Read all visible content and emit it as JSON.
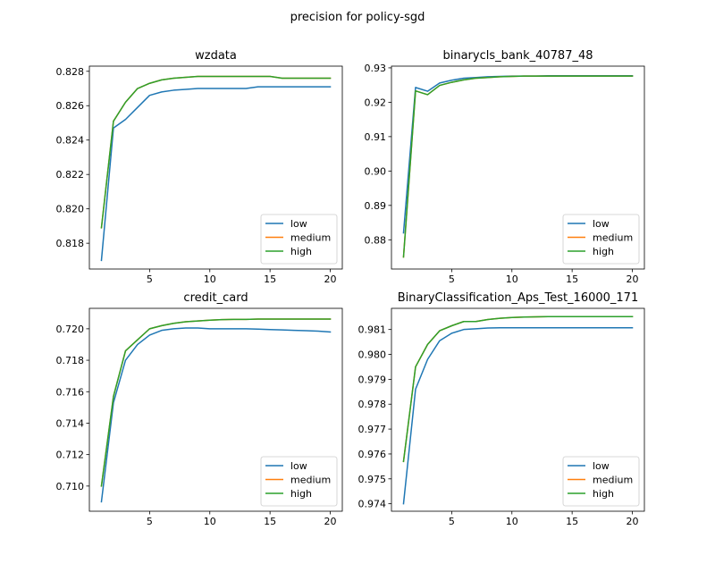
{
  "suptitle": "precision for policy-sgd",
  "colors": {
    "low": "#1f77b4",
    "medium": "#ff7f0e",
    "high": "#2ca02c"
  },
  "chart_data": [
    {
      "type": "line",
      "title": "wzdata",
      "xlim": [
        0,
        21
      ],
      "ylim": [
        0.8165,
        0.8283
      ],
      "xticks": [
        5,
        10,
        15,
        20
      ],
      "yticks": [
        0.818,
        0.82,
        0.822,
        0.824,
        0.826,
        0.828
      ],
      "ytick_labels": [
        "0.818",
        "0.820",
        "0.822",
        "0.824",
        "0.826",
        "0.828"
      ],
      "legend": "lower-right",
      "x": [
        1,
        2,
        3,
        4,
        5,
        6,
        7,
        8,
        9,
        10,
        11,
        12,
        13,
        14,
        15,
        16,
        17,
        18,
        19,
        20
      ],
      "series": [
        {
          "name": "low",
          "values": [
            0.817,
            0.8247,
            0.8252,
            0.8259,
            0.8266,
            0.8268,
            0.8269,
            0.82695,
            0.827,
            0.827,
            0.827,
            0.827,
            0.827,
            0.8271,
            0.8271,
            0.8271,
            0.8271,
            0.8271,
            0.8271,
            0.8271
          ]
        },
        {
          "name": "medium",
          "values": [
            0.8189,
            0.8251,
            0.8262,
            0.827,
            0.8273,
            0.8275,
            0.8276,
            0.82765,
            0.8277,
            0.8277,
            0.8277,
            0.8277,
            0.8277,
            0.8277,
            0.8277,
            0.8276,
            0.8276,
            0.8276,
            0.8276,
            0.8276
          ]
        },
        {
          "name": "high",
          "values": [
            0.8189,
            0.8251,
            0.8262,
            0.827,
            0.8273,
            0.8275,
            0.8276,
            0.82765,
            0.8277,
            0.8277,
            0.8277,
            0.8277,
            0.8277,
            0.8277,
            0.8277,
            0.8276,
            0.8276,
            0.8276,
            0.8276,
            0.8276
          ]
        }
      ]
    },
    {
      "type": "line",
      "title": "binarycls_bank_40787_48",
      "xlim": [
        0,
        21
      ],
      "ylim": [
        0.8715,
        0.9305
      ],
      "xticks": [
        5,
        10,
        15,
        20
      ],
      "yticks": [
        0.88,
        0.89,
        0.9,
        0.91,
        0.92,
        0.93
      ],
      "ytick_labels": [
        "0.88",
        "0.89",
        "0.90",
        "0.91",
        "0.92",
        "0.93"
      ],
      "legend": "lower-right",
      "x": [
        1,
        2,
        3,
        4,
        5,
        6,
        7,
        8,
        9,
        10,
        11,
        12,
        13,
        14,
        15,
        16,
        17,
        18,
        19,
        20
      ],
      "series": [
        {
          "name": "low",
          "values": [
            0.882,
            0.9243,
            0.9232,
            0.9256,
            0.9264,
            0.927,
            0.9272,
            0.9274,
            0.9275,
            0.9276,
            0.9276,
            0.9276,
            0.9277,
            0.9277,
            0.9277,
            0.9277,
            0.9277,
            0.9277,
            0.9277,
            0.9277
          ]
        },
        {
          "name": "medium",
          "values": [
            0.875,
            0.9233,
            0.9222,
            0.9249,
            0.9258,
            0.9265,
            0.927,
            0.9272,
            0.9274,
            0.9275,
            0.9276,
            0.9276,
            0.9276,
            0.9276,
            0.9276,
            0.9276,
            0.9276,
            0.9276,
            0.9276,
            0.9276
          ]
        },
        {
          "name": "high",
          "values": [
            0.875,
            0.9233,
            0.9222,
            0.9249,
            0.9258,
            0.9265,
            0.927,
            0.9272,
            0.9274,
            0.9275,
            0.9276,
            0.9276,
            0.9276,
            0.9276,
            0.9276,
            0.9276,
            0.9276,
            0.9276,
            0.9276,
            0.9276
          ]
        }
      ]
    },
    {
      "type": "line",
      "title": "credit_card",
      "xlim": [
        0,
        21
      ],
      "ylim": [
        0.7084,
        0.7213
      ],
      "xticks": [
        5,
        10,
        15,
        20
      ],
      "yticks": [
        0.71,
        0.712,
        0.714,
        0.716,
        0.718,
        0.72
      ],
      "ytick_labels": [
        "0.710",
        "0.712",
        "0.714",
        "0.716",
        "0.718",
        "0.720"
      ],
      "legend": "lower-right",
      "x": [
        1,
        2,
        3,
        4,
        5,
        6,
        7,
        8,
        9,
        10,
        11,
        12,
        13,
        14,
        15,
        16,
        17,
        18,
        19,
        20
      ],
      "series": [
        {
          "name": "low",
          "values": [
            0.709,
            0.7153,
            0.718,
            0.719,
            0.7196,
            0.7199,
            0.72,
            0.72005,
            0.72005,
            0.72,
            0.72,
            0.72,
            0.72,
            0.71998,
            0.71995,
            0.71993,
            0.7199,
            0.71988,
            0.71985,
            0.7198
          ]
        },
        {
          "name": "medium",
          "values": [
            0.71,
            0.7157,
            0.7186,
            0.7193,
            0.72,
            0.7202,
            0.72035,
            0.72045,
            0.7205,
            0.72055,
            0.72058,
            0.7206,
            0.7206,
            0.72062,
            0.72062,
            0.72062,
            0.72062,
            0.72062,
            0.72062,
            0.72062
          ]
        },
        {
          "name": "high",
          "values": [
            0.71,
            0.7157,
            0.7186,
            0.7193,
            0.72,
            0.7202,
            0.72035,
            0.72045,
            0.7205,
            0.72055,
            0.72058,
            0.7206,
            0.7206,
            0.72062,
            0.72062,
            0.72062,
            0.72062,
            0.72062,
            0.72062,
            0.72062
          ]
        }
      ]
    },
    {
      "type": "line",
      "title": "BinaryClassification_Aps_Test_16000_171",
      "xlim": [
        0,
        21
      ],
      "ylim": [
        0.9737,
        0.98185
      ],
      "xticks": [
        5,
        10,
        15,
        20
      ],
      "yticks": [
        0.974,
        0.975,
        0.976,
        0.977,
        0.978,
        0.979,
        0.98,
        0.981
      ],
      "ytick_labels": [
        "0.974",
        "0.975",
        "0.976",
        "0.977",
        "0.978",
        "0.979",
        "0.980",
        "0.981"
      ],
      "legend": "lower-right",
      "x": [
        1,
        2,
        3,
        4,
        5,
        6,
        7,
        8,
        9,
        10,
        11,
        12,
        13,
        14,
        15,
        16,
        17,
        18,
        19,
        20
      ],
      "series": [
        {
          "name": "low",
          "values": [
            0.974,
            0.9786,
            0.9798,
            0.98055,
            0.98085,
            0.981,
            0.98103,
            0.98106,
            0.98107,
            0.98107,
            0.98107,
            0.98107,
            0.98107,
            0.98107,
            0.98107,
            0.98107,
            0.98107,
            0.98107,
            0.98107,
            0.98107
          ]
        },
        {
          "name": "medium",
          "values": [
            0.9757,
            0.9795,
            0.9804,
            0.98095,
            0.98115,
            0.98132,
            0.98132,
            0.9814,
            0.98145,
            0.98148,
            0.9815,
            0.98151,
            0.98152,
            0.98152,
            0.98152,
            0.98152,
            0.98152,
            0.98152,
            0.98152,
            0.98152
          ]
        },
        {
          "name": "high",
          "values": [
            0.9757,
            0.9795,
            0.9804,
            0.98095,
            0.98115,
            0.98132,
            0.98132,
            0.9814,
            0.98145,
            0.98148,
            0.9815,
            0.98151,
            0.98152,
            0.98152,
            0.98152,
            0.98152,
            0.98152,
            0.98152,
            0.98152,
            0.98152
          ]
        }
      ]
    }
  ]
}
